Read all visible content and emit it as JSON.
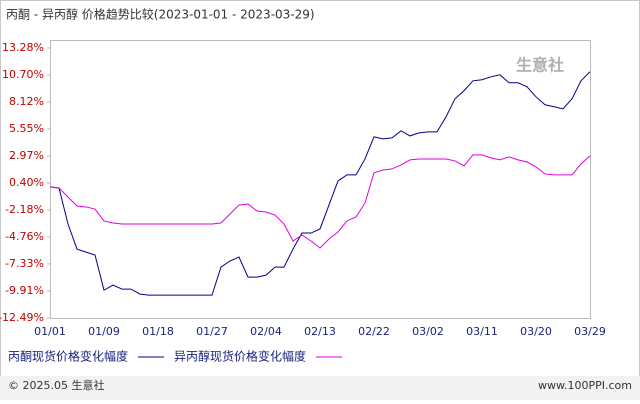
{
  "chart_data": {
    "type": "line",
    "title": "丙酮 - 异丙醇 价格趋势比较(2023-01-01 - 2023-03-29)",
    "watermark": "生意社",
    "footer_left": "© 2025.05 生意社",
    "footer_right": "www.100PPI.com",
    "categories": [
      "01/01",
      null,
      null,
      null,
      null,
      null,
      "01/09",
      null,
      null,
      null,
      null,
      null,
      "01/18",
      null,
      null,
      null,
      null,
      null,
      "01/27",
      null,
      null,
      null,
      null,
      null,
      "02/04",
      null,
      null,
      null,
      null,
      null,
      "02/13",
      null,
      null,
      null,
      null,
      null,
      "02/22",
      null,
      null,
      null,
      null,
      null,
      "03/02",
      null,
      null,
      null,
      null,
      null,
      "03/11",
      null,
      null,
      null,
      null,
      null,
      "03/20",
      null,
      null,
      null,
      null,
      null,
      "03/29"
    ],
    "series": [
      {
        "name": "丙酮现货价格变化幅度",
        "color": "#00008b",
        "values": [
          0.02,
          -0.08,
          -3.52,
          -5.91,
          -6.2,
          -6.48,
          -9.83,
          -9.35,
          -9.73,
          -9.73,
          -10.21,
          -10.31,
          -10.31,
          -10.31,
          -10.31,
          -10.31,
          -10.31,
          -10.31,
          -10.31,
          -7.63,
          -7.05,
          -6.67,
          -8.59,
          -8.59,
          -8.4,
          -7.63,
          -7.63,
          -5.91,
          -4.38,
          -4.38,
          -3.99,
          -1.7,
          0.59,
          1.17,
          1.17,
          2.69,
          4.8,
          4.61,
          4.7,
          5.37,
          4.89,
          5.18,
          5.27,
          5.27,
          6.71,
          8.43,
          9.2,
          10.15,
          10.25,
          10.53,
          10.72,
          9.96,
          9.96,
          9.58,
          8.62,
          7.86,
          7.67,
          7.47,
          8.43,
          10.15,
          11.01
        ]
      },
      {
        "name": "异丙醇现货价格变化幅度",
        "color": "#e000e0",
        "values": [
          0.02,
          -0.08,
          -0.94,
          -1.8,
          -1.89,
          -2.09,
          -3.23,
          -3.42,
          -3.52,
          -3.52,
          -3.52,
          -3.52,
          -3.52,
          -3.52,
          -3.52,
          -3.52,
          -3.52,
          -3.52,
          -3.52,
          -3.42,
          -2.56,
          -1.7,
          -1.61,
          -2.28,
          -2.37,
          -2.66,
          -3.52,
          -5.14,
          -4.57,
          -5.14,
          -5.81,
          -4.95,
          -4.28,
          -3.23,
          -2.85,
          -1.51,
          1.36,
          1.64,
          1.74,
          2.12,
          2.6,
          2.69,
          2.69,
          2.69,
          2.69,
          2.5,
          2.03,
          3.08,
          3.08,
          2.79,
          2.6,
          2.89,
          2.6,
          2.41,
          1.93,
          1.26,
          1.17,
          1.17,
          1.17,
          2.22,
          2.98
        ]
      }
    ],
    "ylim": [
      -12.49,
      13.28
    ],
    "yticks": [
      {
        "value": 13.28,
        "label": "13.28%"
      },
      {
        "value": 10.7,
        "label": "10.70%"
      },
      {
        "value": 8.12,
        "label": "8.12%"
      },
      {
        "value": 5.55,
        "label": "5.55%"
      },
      {
        "value": 2.97,
        "label": "2.97%"
      },
      {
        "value": 0.4,
        "label": "0.40%"
      },
      {
        "value": -2.18,
        "label": "-2.18%"
      },
      {
        "value": -4.76,
        "label": "-4.76%"
      },
      {
        "value": -7.33,
        "label": "-7.33%"
      },
      {
        "value": -9.91,
        "label": "-9.91%"
      },
      {
        "value": -12.49,
        "label": "-12.49%"
      }
    ],
    "grid": false
  }
}
